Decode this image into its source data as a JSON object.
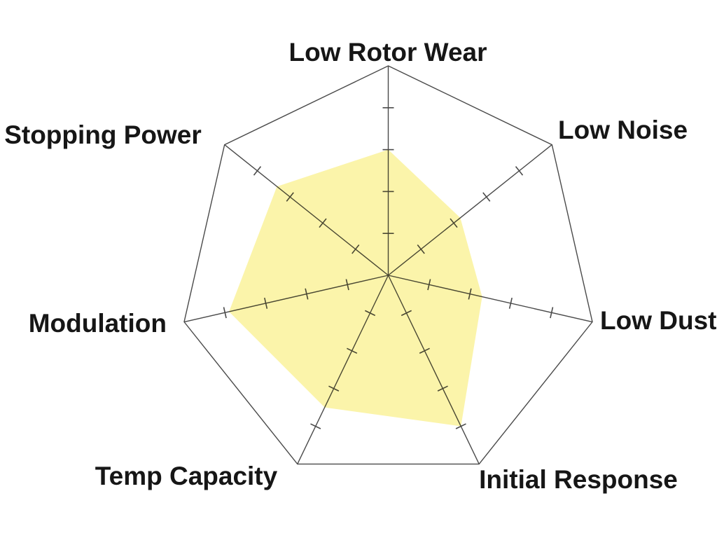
{
  "chart_data": {
    "type": "radar",
    "title": "",
    "legend": "none",
    "categories": [
      "Low Rotor Wear",
      "Low Noise",
      "Low Dust",
      "Initial Response",
      "Temp Capacity",
      "Modulation",
      "Stopping Power"
    ],
    "values": [
      6.0,
      4.4,
      4.6,
      8.0,
      7.0,
      7.8,
      6.8
    ],
    "scale": {
      "min": 0,
      "max": 10,
      "tick_step": 2,
      "ticks_per_axis": 4,
      "concentric_rings": false,
      "outer_boundary": "heptagon"
    },
    "colors": {
      "fill": "#fbf4aa",
      "grid": "#4a4a4a",
      "label": "#161616",
      "background": "#ffffff"
    }
  }
}
